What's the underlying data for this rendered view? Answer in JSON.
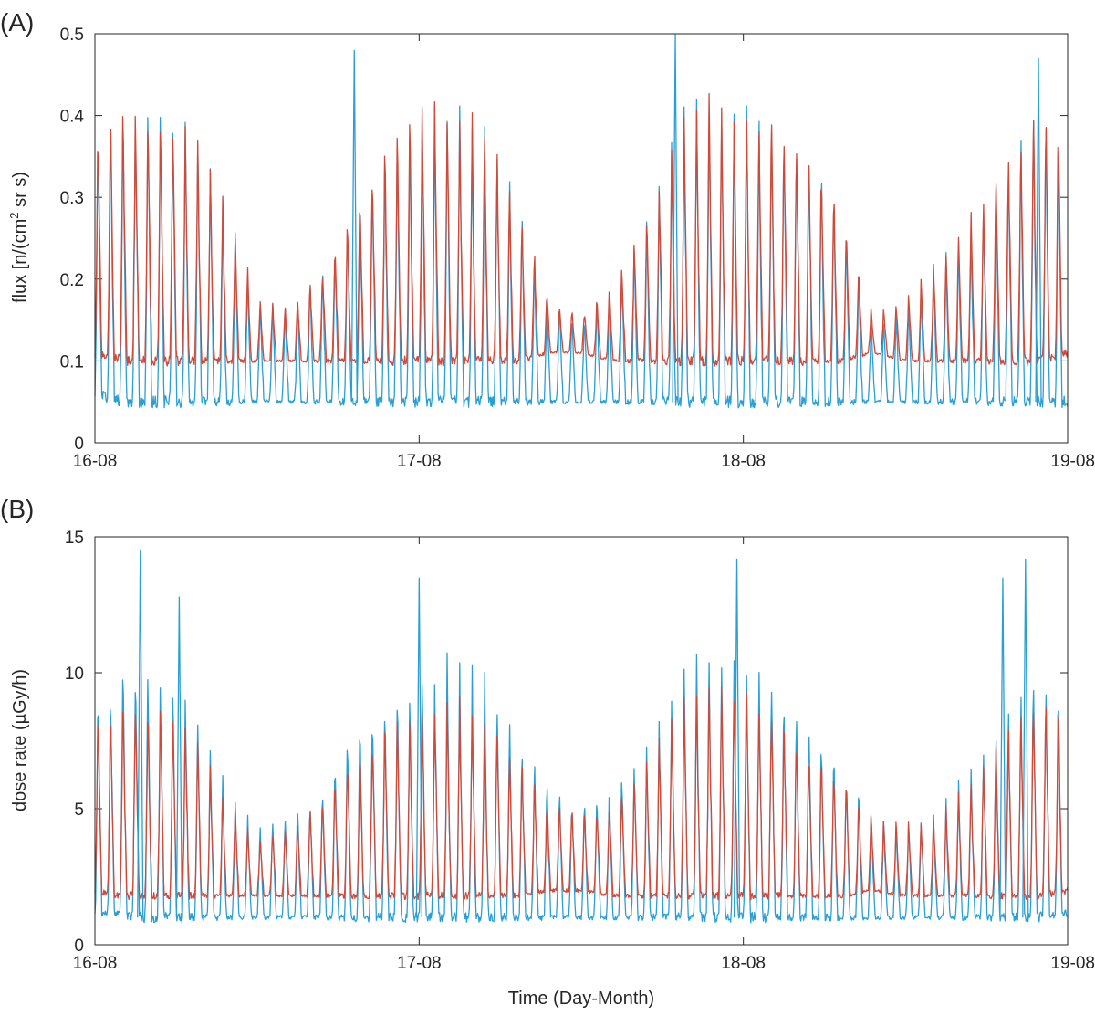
{
  "figure": {
    "xlabel": "Time (Day-Month)",
    "series_colors": [
      "#2b9fd4",
      "#d04a3a"
    ]
  },
  "chart_data": [
    {
      "type": "line",
      "panel_label": "(A)",
      "ylabel_main": "flux [n/(cm",
      "ylabel_sup": "2",
      "ylabel_tail": " sr s)",
      "ylim": [
        0,
        0.5
      ],
      "yticks": [
        0,
        0.1,
        0.2,
        0.3,
        0.4,
        0.5
      ],
      "ytick_labels": [
        "0",
        "0.1",
        "0.2",
        "0.3",
        "0.4",
        "0.5"
      ],
      "xlim": [
        0,
        3
      ],
      "xticks": [
        0,
        1,
        2,
        3
      ],
      "xtick_labels": [
        "16-08",
        "17-08",
        "18-08",
        "19-08"
      ],
      "grid": false,
      "envelope": {
        "x": [
          0,
          0.1,
          0.2,
          0.3,
          0.4,
          0.5,
          0.6,
          0.7,
          0.8,
          0.9,
          1.0,
          1.1,
          1.2,
          1.3,
          1.4,
          1.5,
          1.6,
          1.7,
          1.8,
          1.9,
          2.0,
          2.1,
          2.2,
          2.3,
          2.4,
          2.5,
          2.6,
          2.7,
          2.8,
          2.9,
          3.0
        ],
        "series": [
          {
            "base": [
              0.06,
              0.05,
              0.05,
              0.05,
              0.05,
              0.05,
              0.05,
              0.05,
              0.05,
              0.05,
              0.05,
              0.05,
              0.05,
              0.05,
              0.05,
              0.05,
              0.05,
              0.05,
              0.05,
              0.05,
              0.05,
              0.05,
              0.05,
              0.05,
              0.05,
              0.05,
              0.05,
              0.05,
              0.05,
              0.05,
              0.05
            ],
            "peak": [
              0.4,
              0.43,
              0.42,
              0.39,
              0.3,
              0.18,
              0.17,
              0.22,
              0.3,
              0.38,
              0.41,
              0.41,
              0.39,
              0.31,
              0.18,
              0.16,
              0.19,
              0.28,
              0.4,
              0.42,
              0.42,
              0.41,
              0.38,
              0.3,
              0.15,
              0.17,
              0.22,
              0.27,
              0.35,
              0.42,
              0.4
            ]
          },
          {
            "base": [
              0.11,
              0.1,
              0.1,
              0.1,
              0.1,
              0.1,
              0.1,
              0.1,
              0.1,
              0.1,
              0.1,
              0.1,
              0.1,
              0.1,
              0.11,
              0.11,
              0.1,
              0.1,
              0.1,
              0.1,
              0.1,
              0.1,
              0.1,
              0.1,
              0.11,
              0.1,
              0.1,
              0.1,
              0.1,
              0.1,
              0.11
            ],
            "peak": [
              0.41,
              0.43,
              0.42,
              0.38,
              0.3,
              0.18,
              0.17,
              0.22,
              0.3,
              0.38,
              0.42,
              0.41,
              0.39,
              0.31,
              0.18,
              0.16,
              0.2,
              0.28,
              0.39,
              0.42,
              0.42,
              0.41,
              0.38,
              0.3,
              0.16,
              0.18,
              0.22,
              0.28,
              0.36,
              0.42,
              0.4
            ]
          }
        ]
      },
      "spikes": [
        {
          "series": 0,
          "x": 0.8,
          "y": 0.48
        },
        {
          "series": 0,
          "x": 1.79,
          "y": 0.5
        },
        {
          "series": 0,
          "x": 2.91,
          "y": 0.47
        }
      ]
    },
    {
      "type": "line",
      "panel_label": "(B)",
      "ylabel_main": "dose rate (µGy/h)",
      "ylabel_sup": "",
      "ylabel_tail": "",
      "ylim": [
        0,
        15
      ],
      "yticks": [
        0,
        5,
        10,
        15
      ],
      "ytick_labels": [
        "0",
        "5",
        "10",
        "15"
      ],
      "xlim": [
        0,
        3
      ],
      "xticks": [
        0,
        1,
        2,
        3
      ],
      "xtick_labels": [
        "16-08",
        "17-08",
        "18-08",
        "19-08"
      ],
      "grid": false,
      "envelope": {
        "x": [
          0,
          0.1,
          0.2,
          0.3,
          0.4,
          0.5,
          0.6,
          0.7,
          0.8,
          0.9,
          1.0,
          1.1,
          1.2,
          1.3,
          1.4,
          1.5,
          1.6,
          1.7,
          1.8,
          1.9,
          2.0,
          2.1,
          2.2,
          2.3,
          2.4,
          2.5,
          2.6,
          2.7,
          2.8,
          2.9,
          3.0
        ],
        "series": [
          {
            "base": [
              1.2,
              1.0,
              1.0,
              1.0,
              1.0,
              1.0,
              1.0,
              1.0,
              1.0,
              1.0,
              1.0,
              1.0,
              1.0,
              1.0,
              1.0,
              1.0,
              1.0,
              1.0,
              1.0,
              1.0,
              1.0,
              1.0,
              1.0,
              1.0,
              1.0,
              1.0,
              1.0,
              1.0,
              1.0,
              1.0,
              1.2
            ],
            "peak": [
              9.5,
              11.0,
              10.5,
              9.0,
              6.0,
              4.5,
              5.0,
              6.0,
              8.5,
              9.5,
              10.0,
              10.5,
              10.0,
              8.0,
              6.0,
              5.5,
              6.0,
              7.5,
              10.0,
              11.0,
              11.0,
              10.0,
              8.5,
              7.0,
              5.0,
              4.5,
              5.0,
              6.5,
              8.5,
              10.5,
              9.5
            ]
          },
          {
            "base": [
              2.0,
              1.8,
              1.8,
              1.8,
              1.8,
              1.8,
              1.8,
              1.8,
              1.8,
              1.8,
              1.8,
              1.8,
              1.8,
              1.8,
              2.0,
              2.0,
              1.8,
              1.8,
              1.8,
              1.8,
              1.8,
              1.8,
              1.8,
              1.8,
              2.0,
              1.8,
              1.8,
              1.8,
              1.8,
              1.8,
              2.0
            ],
            "peak": [
              9.0,
              9.5,
              9.0,
              8.0,
              5.5,
              4.0,
              4.5,
              5.5,
              7.5,
              8.5,
              8.8,
              9.0,
              8.5,
              7.0,
              5.5,
              5.0,
              5.5,
              7.0,
              9.0,
              9.5,
              9.5,
              9.0,
              7.5,
              6.5,
              4.8,
              4.5,
              4.8,
              6.0,
              8.0,
              9.5,
              9.0
            ]
          }
        ]
      },
      "spikes": [
        {
          "series": 0,
          "x": 0.14,
          "y": 14.5
        },
        {
          "series": 0,
          "x": 0.26,
          "y": 12.8
        },
        {
          "series": 0,
          "x": 1.0,
          "y": 13.5
        },
        {
          "series": 0,
          "x": 1.98,
          "y": 14.2
        },
        {
          "series": 0,
          "x": 2.8,
          "y": 13.5
        },
        {
          "series": 0,
          "x": 2.87,
          "y": 14.2
        }
      ]
    }
  ]
}
